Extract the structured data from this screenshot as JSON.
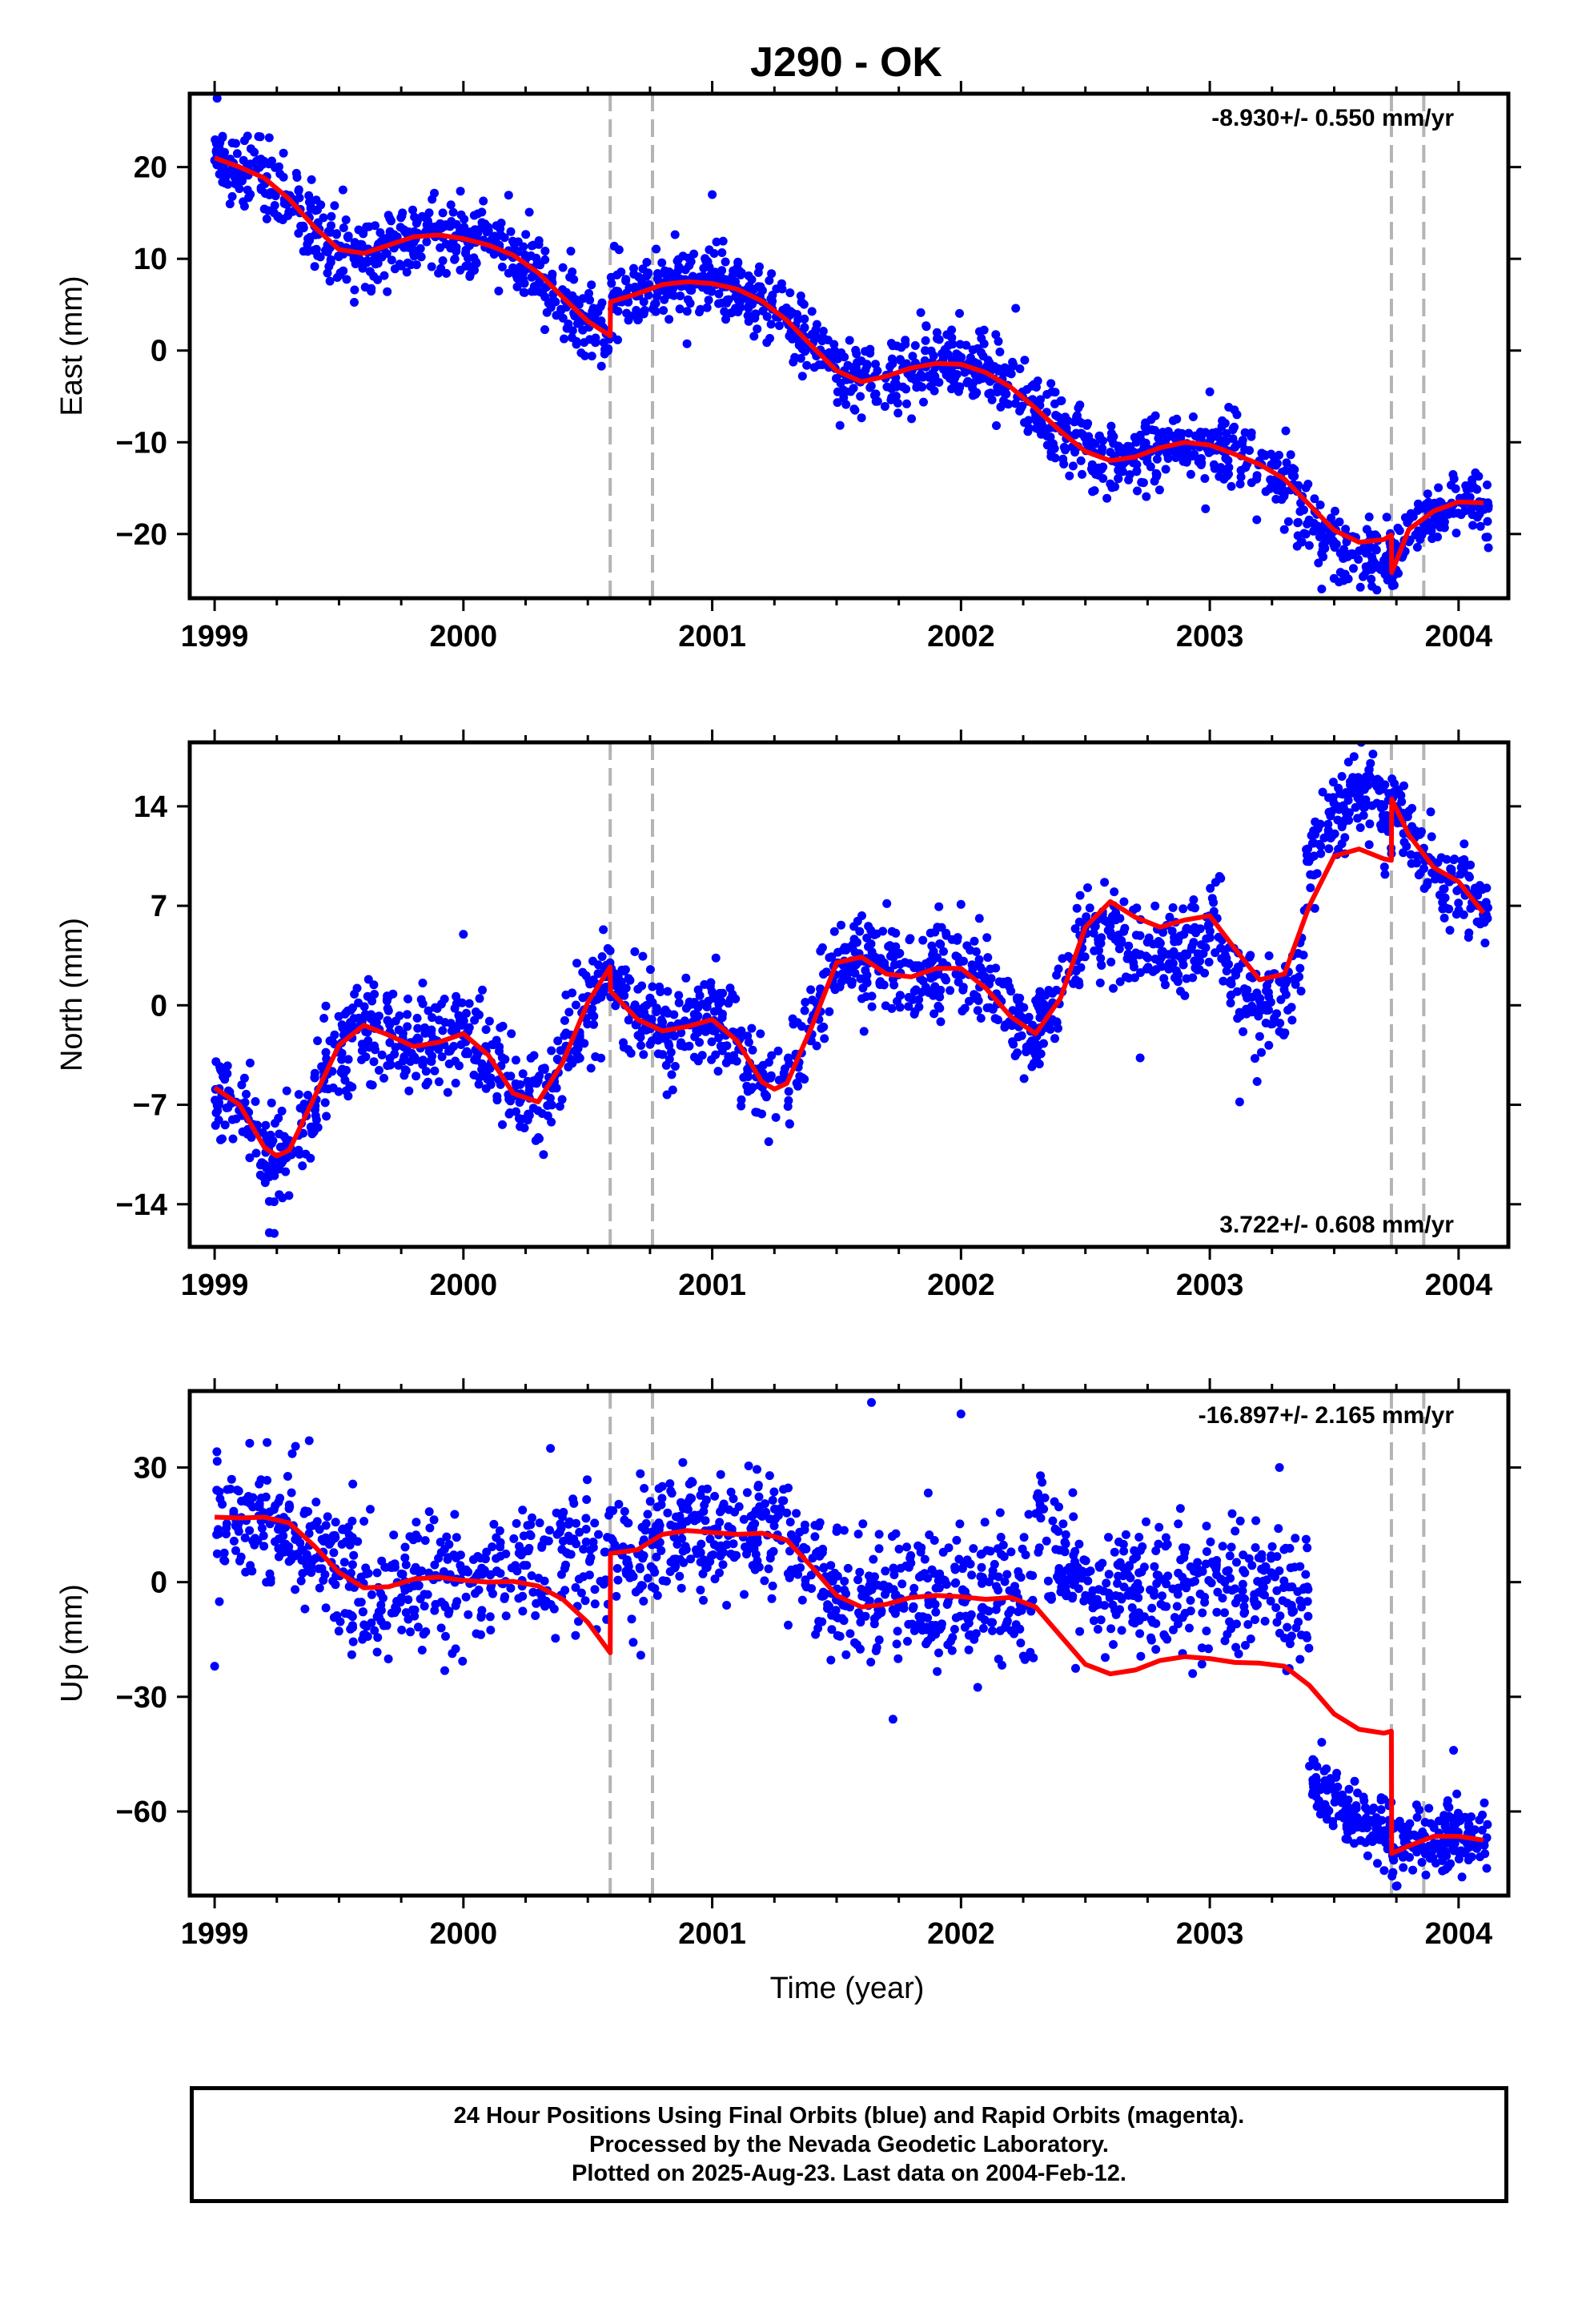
{
  "title": "J290 - OK",
  "x_label": "Time (year)",
  "caption": {
    "line1": "24 Hour Positions Using Final Orbits (blue) and Rapid Orbits (magenta).",
    "line2": "Processed by the Nevada Geodetic Laboratory.",
    "line3": "Plotted on 2025-Aug-23. Last data on 2004-Feb-12."
  },
  "colors": {
    "points": "#0000ff",
    "model": "#ff0000",
    "offset_lines": "#b4b4b4",
    "frame": "#000000"
  },
  "chart_data": [
    {
      "type": "scatter",
      "component": "East",
      "ylabel": "East (mm)",
      "rate_label": "-8.930+/- 0.550 mm/yr",
      "rate_position": "top-right",
      "xlim": [
        1998.9,
        2004.2
      ],
      "ylim": [
        -27,
        28
      ],
      "xticks": [
        1999,
        2000,
        2001,
        2002,
        2003,
        2004
      ],
      "yticks": [
        -20,
        -10,
        0,
        10,
        20
      ],
      "ytick_labels": [
        "−20",
        "−10",
        "0",
        "10",
        "20"
      ],
      "offsets": [
        2000.59,
        2000.76,
        2003.73,
        2003.86
      ],
      "model": {
        "x": [
          1999.0,
          1999.1,
          1999.2,
          1999.3,
          1999.4,
          1999.5,
          1999.6,
          1999.7,
          1999.8,
          1999.9,
          2000.0,
          2000.1,
          2000.2,
          2000.3,
          2000.4,
          2000.5,
          2000.59,
          2000.591,
          2000.7,
          2000.8,
          2000.9,
          2001.0,
          2001.1,
          2001.2,
          2001.3,
          2001.4,
          2001.5,
          2001.6,
          2001.7,
          2001.8,
          2001.9,
          2002.0,
          2002.1,
          2002.2,
          2002.3,
          2002.4,
          2002.5,
          2002.6,
          2002.7,
          2002.8,
          2002.9,
          2003.0,
          2003.1,
          2003.2,
          2003.3,
          2003.4,
          2003.5,
          2003.6,
          2003.7,
          2003.73,
          2003.731,
          2003.8,
          2003.9,
          2004.0,
          2004.1
        ],
        "y": [
          21.0,
          20.0,
          18.8,
          16.5,
          13.5,
          11.0,
          10.6,
          11.5,
          12.4,
          12.6,
          12.2,
          11.5,
          10.4,
          8.5,
          5.8,
          3.2,
          1.6,
          5.3,
          6.2,
          7.2,
          7.5,
          7.3,
          6.7,
          5.4,
          3.3,
          0.5,
          -2.2,
          -3.4,
          -2.8,
          -1.9,
          -1.4,
          -1.5,
          -2.4,
          -4.0,
          -6.3,
          -8.8,
          -11.0,
          -12.0,
          -11.6,
          -10.6,
          -10.0,
          -10.3,
          -11.3,
          -12.4,
          -14.0,
          -16.8,
          -19.6,
          -20.9,
          -20.6,
          -20.1,
          -24.2,
          -19.5,
          -17.5,
          -16.5,
          -16.6
        ]
      },
      "cloud": {
        "segments": [
          {
            "start": 1999.0,
            "end": 2003.73,
            "count": 1640,
            "sigma": 2.0
          },
          {
            "start": 2003.73,
            "end": 2004.12,
            "count": 140,
            "sigma": 1.5
          }
        ],
        "mean_offsets": [
          {
            "start": 2003.35,
            "end": 2003.73,
            "shift": -1.5
          }
        ]
      },
      "outliers": [
        {
          "x": 1999.01,
          "y": 27.5
        },
        {
          "x": 2000.08,
          "y": 16.3
        },
        {
          "x": 2001.0,
          "y": 17.0
        },
        {
          "x": 2002.22,
          "y": 4.6
        },
        {
          "x": 2003.45,
          "y": -26.0
        },
        {
          "x": 2004.12,
          "y": -21.5
        },
        {
          "x": 2003.0,
          "y": -4.5
        }
      ]
    },
    {
      "type": "scatter",
      "component": "North",
      "ylabel": "North (mm)",
      "rate_label": "3.722+/- 0.608 mm/yr",
      "rate_position": "bottom-right",
      "xlim": [
        1998.9,
        2004.2
      ],
      "ylim": [
        -17,
        18.5
      ],
      "xticks": [
        1999,
        2000,
        2001,
        2002,
        2003,
        2004
      ],
      "yticks": [
        -14,
        -7,
        0,
        7,
        14
      ],
      "ytick_labels": [
        "−14",
        "−7",
        "0",
        "7",
        "14"
      ],
      "offsets": [
        2000.59,
        2000.76,
        2003.73,
        2003.86
      ],
      "model": {
        "x": [
          1999.0,
          1999.1,
          1999.2,
          1999.25,
          1999.3,
          1999.4,
          1999.5,
          1999.6,
          1999.7,
          1999.8,
          1999.9,
          2000.0,
          2000.1,
          2000.2,
          2000.3,
          2000.4,
          2000.5,
          2000.59,
          2000.591,
          2000.7,
          2000.8,
          2000.9,
          2001.0,
          2001.1,
          2001.2,
          2001.25,
          2001.3,
          2001.4,
          2001.5,
          2001.6,
          2001.7,
          2001.8,
          2001.9,
          2002.0,
          2002.1,
          2002.2,
          2002.3,
          2002.4,
          2002.5,
          2002.6,
          2002.7,
          2002.8,
          2002.9,
          2003.0,
          2003.1,
          2003.2,
          2003.3,
          2003.4,
          2003.5,
          2003.6,
          2003.7,
          2003.73,
          2003.731,
          2003.8,
          2003.9,
          2004.0,
          2004.1
        ],
        "y": [
          -5.8,
          -7.0,
          -10.0,
          -10.6,
          -10.2,
          -6.5,
          -2.8,
          -1.4,
          -2.1,
          -2.9,
          -2.6,
          -2.0,
          -3.5,
          -6.2,
          -6.8,
          -4.0,
          0.2,
          2.7,
          1.0,
          -1.0,
          -1.8,
          -1.5,
          -1.0,
          -2.5,
          -5.4,
          -5.9,
          -5.5,
          -1.5,
          3.0,
          3.4,
          2.2,
          2.0,
          2.6,
          2.6,
          1.2,
          -0.8,
          -2.0,
          0.5,
          5.5,
          7.3,
          6.2,
          5.5,
          6.0,
          6.3,
          4.0,
          1.8,
          2.2,
          7.0,
          10.5,
          11.0,
          10.3,
          10.2,
          14.5,
          12.0,
          9.7,
          8.7,
          6.5
        ]
      },
      "cloud": {
        "segments": [
          {
            "start": 1999.0,
            "end": 2003.73,
            "count": 1640,
            "sigma": 1.7
          },
          {
            "start": 2003.73,
            "end": 2004.12,
            "count": 140,
            "sigma": 1.4
          }
        ],
        "mean_offsets": [
          {
            "start": 2003.05,
            "end": 2003.38,
            "shift": -2.0
          },
          {
            "start": 2003.38,
            "end": 2003.73,
            "shift": 3.5
          },
          {
            "start": 2002.55,
            "end": 2003.0,
            "shift": -2.0
          }
        ]
      },
      "outliers": [
        {
          "x": 1999.22,
          "y": -16.0
        },
        {
          "x": 1999.22,
          "y": -13.8
        },
        {
          "x": 2002.72,
          "y": -3.7
        },
        {
          "x": 2003.12,
          "y": -6.8
        },
        {
          "x": 2003.58,
          "y": 17.5
        },
        {
          "x": 2000.0,
          "y": 5.0
        },
        {
          "x": 2002.0,
          "y": 7.1
        }
      ]
    },
    {
      "type": "scatter",
      "component": "Up",
      "ylabel": "Up (mm)",
      "rate_label": "-16.897+/- 2.165 mm/yr",
      "rate_position": "top-right",
      "xlim": [
        1998.9,
        2004.2
      ],
      "ylim": [
        -82,
        50
      ],
      "xticks": [
        1999,
        2000,
        2001,
        2002,
        2003,
        2004
      ],
      "yticks": [
        -60,
        -30,
        0,
        30
      ],
      "ytick_labels": [
        "−60",
        "−30",
        "0",
        "30"
      ],
      "offsets": [
        2000.59,
        2000.76,
        2003.73,
        2003.86
      ],
      "model": {
        "x": [
          1999.0,
          1999.1,
          1999.2,
          1999.3,
          1999.4,
          1999.5,
          1999.6,
          1999.7,
          1999.8,
          1999.9,
          2000.0,
          2000.1,
          2000.2,
          2000.3,
          2000.4,
          2000.5,
          2000.59,
          2000.591,
          2000.7,
          2000.8,
          2000.9,
          2001.0,
          2001.1,
          2001.2,
          2001.3,
          2001.4,
          2001.5,
          2001.6,
          2001.7,
          2001.8,
          2001.9,
          2002.0,
          2002.1,
          2002.2,
          2002.3,
          2002.4,
          2002.5,
          2002.6,
          2002.7,
          2002.8,
          2002.9,
          2003.0,
          2003.1,
          2003.2,
          2003.3,
          2003.4,
          2003.5,
          2003.6,
          2003.7,
          2003.73,
          2003.731,
          2003.8,
          2003.9,
          2004.0,
          2004.1
        ],
        "y": [
          17.0,
          16.8,
          17.0,
          15.5,
          9.5,
          2.5,
          -1.5,
          -1.2,
          0.8,
          1.3,
          0.5,
          0.0,
          0.2,
          -1.0,
          -4.5,
          -10.5,
          -18.5,
          7.5,
          8.5,
          12.5,
          13.5,
          13.0,
          12.5,
          12.8,
          11.0,
          4.0,
          -3.5,
          -6.5,
          -5.8,
          -4.0,
          -3.5,
          -3.8,
          -4.5,
          -4.0,
          -6.5,
          -14.0,
          -21.5,
          -24.0,
          -23.0,
          -20.5,
          -19.5,
          -20.0,
          -21.0,
          -21.2,
          -22.0,
          -27.0,
          -34.5,
          -38.5,
          -39.5,
          -39.0,
          -71.0,
          -69.0,
          -66.5,
          -66.5,
          -67.5
        ]
      },
      "cloud": {
        "segments": [
          {
            "start": 1999.0,
            "end": 2003.4,
            "count": 1500,
            "sigma": 8.5
          },
          {
            "start": 2003.4,
            "end": 2004.12,
            "count": 300,
            "sigma": 4.5
          }
        ],
        "mean_offsets": [
          {
            "start": 2003.4,
            "end": 2003.73,
            "shift": -24.0
          },
          {
            "start": 2002.3,
            "end": 2003.4,
            "shift": 20.0
          }
        ],
        "mean_override": [
          {
            "start": 2000.2,
            "end": 2000.59,
            "value": 7.0
          }
        ]
      },
      "outliers": [
        {
          "x": 1999.0,
          "y": -22.0
        },
        {
          "x": 2001.64,
          "y": 47.0
        },
        {
          "x": 2002.0,
          "y": 44.0
        },
        {
          "x": 1999.38,
          "y": 37.0
        },
        {
          "x": 2003.28,
          "y": 30.0
        },
        {
          "x": 2003.98,
          "y": -44.0
        },
        {
          "x": 2000.35,
          "y": 35.0
        }
      ]
    }
  ]
}
